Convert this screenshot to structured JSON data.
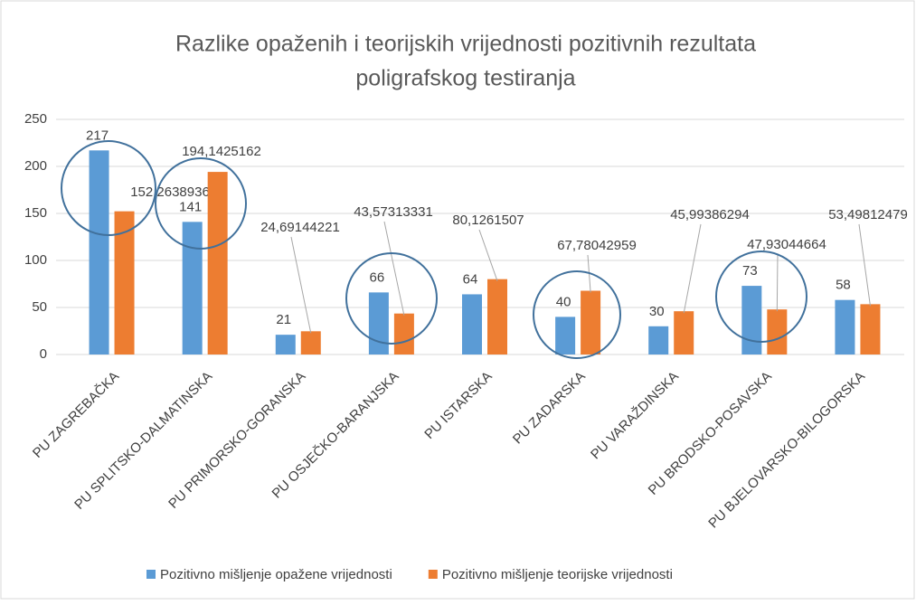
{
  "chart_data": {
    "type": "bar",
    "title": [
      "Razlike opaženih i teorijskih vrijednosti pozitivnih rezultata",
      "poligrafskog testiranja"
    ],
    "categories": [
      "PU ZAGREBAČKA",
      "PU SPLITSKO-DALMATINSKA",
      "PU PRIMORSKO-GORANSKA",
      "PU OSJEČKO-BARANJSKA",
      "PU ISTARSKA",
      "PU ZADARSKA",
      "PU VARAŽDINSKA",
      "PU BRODSKO-POSAVSKA",
      "PU BJELOVARSKO-BILOGORSKA"
    ],
    "series": [
      {
        "name": "Pozitivno mišljenje opažene vrijednosti",
        "color": "#5b9bd5",
        "values": [
          217,
          141,
          21,
          66,
          64,
          40,
          30,
          73,
          58
        ]
      },
      {
        "name": "Pozitivno mišljenje teorijske vrijednosti",
        "color": "#ed7d31",
        "values": [
          152.2638936,
          194.1425162,
          24.69144221,
          43.57313331,
          80.1261507,
          67.78042959,
          45.99386294,
          47.93044664,
          53.49812479
        ],
        "value_labels": [
          "152,2638936",
          "194,1425162",
          "24,69144221",
          "43,57313331",
          "80,1261507",
          "67,78042959",
          "45,99386294",
          "47,93044664",
          "53,49812479"
        ]
      }
    ],
    "ylim": [
      0,
      250
    ],
    "yticks": [
      0,
      50,
      100,
      150,
      200,
      250
    ],
    "grid": true,
    "legend": "bottom"
  }
}
